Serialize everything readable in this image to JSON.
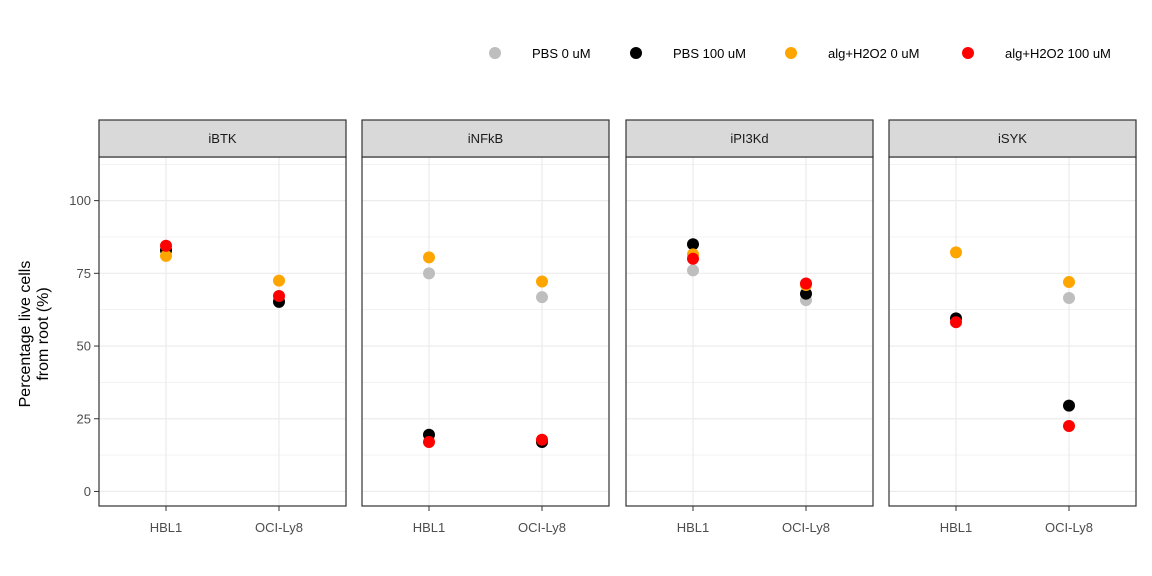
{
  "chart_data": {
    "type": "scatter",
    "facets": [
      "iBTK",
      "iNFkB",
      "iPI3Kd",
      "iSYK"
    ],
    "categories": [
      "HBL1",
      "OCI-Ly8"
    ],
    "ylabel_lines": [
      "Percentage live cells",
      "from root (%)"
    ],
    "xlabel": "",
    "ylim": [
      -5,
      115
    ],
    "yticks": [
      0,
      25,
      50,
      75,
      100
    ],
    "grid": true,
    "legend_position": "top-right",
    "series": [
      {
        "name": "PBS 0 uM",
        "color": "#bebebe",
        "values": {
          "iBTK": [
            82.5,
            65.8
          ],
          "iNFkB": [
            75.0,
            66.8
          ],
          "iPI3Kd": [
            76.0,
            65.8
          ],
          "iSYK": [
            59.0,
            66.5
          ]
        }
      },
      {
        "name": "PBS 100 uM",
        "color": "#000000",
        "values": {
          "iBTK": [
            83.0,
            65.2
          ],
          "iNFkB": [
            19.5,
            17.0
          ],
          "iPI3Kd": [
            85.0,
            68.0
          ],
          "iSYK": [
            59.5,
            29.5
          ]
        }
      },
      {
        "name": "alg+H2O2 0 uM",
        "color": "#ffa500",
        "values": {
          "iBTK": [
            81.0,
            72.5
          ],
          "iNFkB": [
            80.5,
            72.2
          ],
          "iPI3Kd": [
            81.5,
            71.0
          ],
          "iSYK": [
            82.2,
            72.0
          ]
        }
      },
      {
        "name": "alg+H2O2 100 uM",
        "color": "#ff0000",
        "values": {
          "iBTK": [
            84.5,
            67.2
          ],
          "iNFkB": [
            17.0,
            17.8
          ],
          "iPI3Kd": [
            80.0,
            71.5
          ],
          "iSYK": [
            58.2,
            22.5
          ]
        }
      }
    ]
  }
}
